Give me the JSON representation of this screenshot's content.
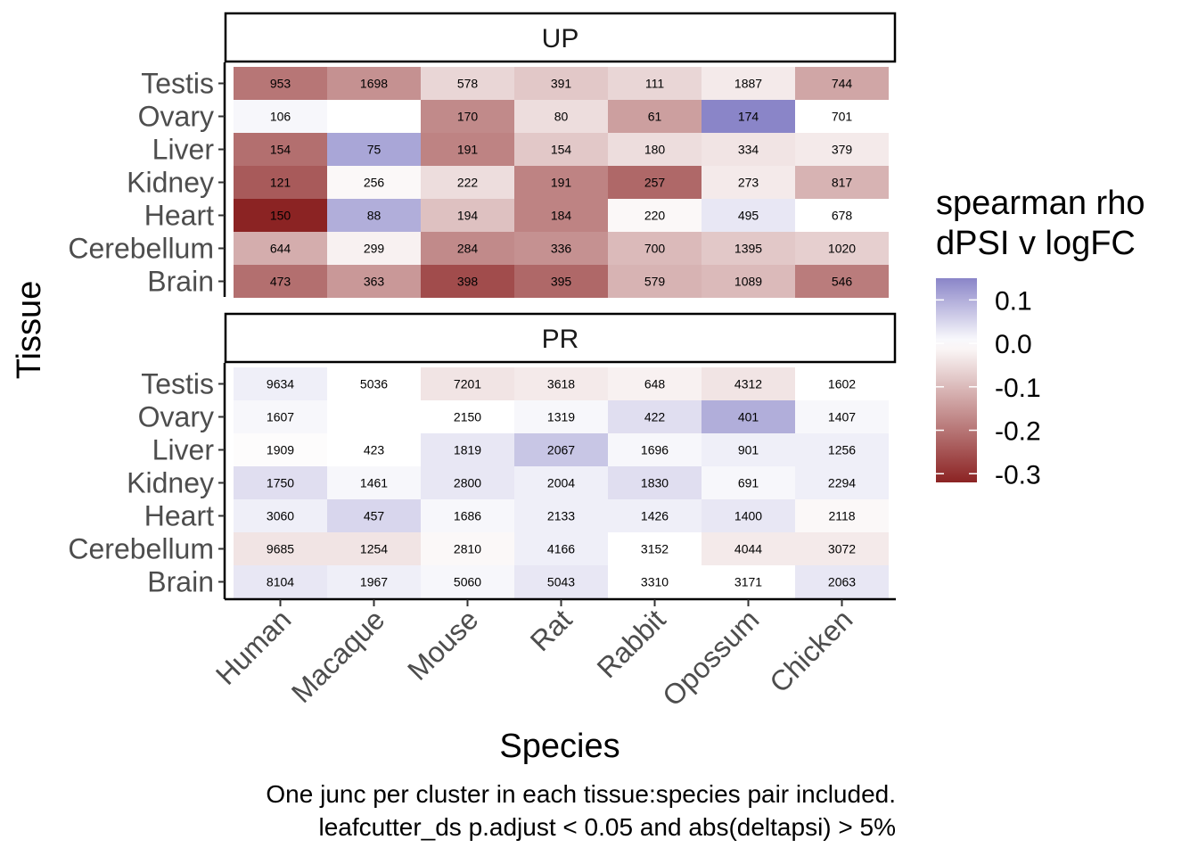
{
  "chart_data": {
    "type": "heatmap",
    "xlabel": "Species",
    "ylabel": "Tissue",
    "x_categories": [
      "Human",
      "Macaque",
      "Mouse",
      "Rat",
      "Rabbit",
      "Opossum",
      "Chicken"
    ],
    "y_categories": [
      "Testis",
      "Ovary",
      "Liver",
      "Kidney",
      "Heart",
      "Cerebellum",
      "Brain"
    ],
    "legend": {
      "title_line1": "spearman rho",
      "title_line2": "dPSI v logFC",
      "ticks": [
        "0.1",
        "0.0",
        "-0.1",
        "-0.2",
        "-0.3"
      ],
      "tick_values": [
        0.1,
        0.0,
        -0.1,
        -0.2,
        -0.3
      ],
      "range": [
        -0.32,
        0.15
      ],
      "low_color": "#8b2323",
      "mid_color": "#ffffff",
      "high_color": "#8a85c8",
      "placement": "right"
    },
    "caption_line1": "One junc per cluster in each tissue:species pair included.",
    "caption_line2": "leafcutter_ds p.adjust < 0.05 and abs(deltapsi) > 5%",
    "panels": [
      {
        "label": "UP",
        "counts": [
          [
            "953",
            "1698",
            "578",
            "391",
            "111",
            "1887",
            "744"
          ],
          [
            "106",
            "",
            "170",
            "80",
            "61",
            "174",
            "701"
          ],
          [
            "154",
            "75",
            "191",
            "154",
            "180",
            "334",
            "379"
          ],
          [
            "121",
            "256",
            "222",
            "191",
            "257",
            "273",
            "817"
          ],
          [
            "150",
            "88",
            "194",
            "184",
            "220",
            "495",
            "678"
          ],
          [
            "644",
            "299",
            "284",
            "336",
            "700",
            "1395",
            "1020"
          ],
          [
            "473",
            "363",
            "398",
            "395",
            "579",
            "1089",
            "546"
          ]
        ],
        "rho": [
          [
            -0.2,
            -0.16,
            -0.06,
            -0.08,
            -0.06,
            -0.03,
            -0.13
          ],
          [
            0.01,
            null,
            -0.17,
            -0.05,
            -0.14,
            0.15,
            0.0
          ],
          [
            -0.21,
            0.11,
            -0.18,
            -0.08,
            -0.05,
            -0.04,
            -0.03
          ],
          [
            -0.24,
            -0.01,
            -0.05,
            -0.18,
            -0.22,
            -0.03,
            -0.11
          ],
          [
            -0.32,
            0.1,
            -0.09,
            -0.18,
            -0.01,
            0.03,
            0.0
          ],
          [
            -0.12,
            -0.02,
            -0.17,
            -0.16,
            -0.1,
            -0.08,
            -0.07
          ],
          [
            -0.21,
            -0.15,
            -0.26,
            -0.22,
            -0.11,
            -0.1,
            -0.19
          ]
        ]
      },
      {
        "label": "PR",
        "counts": [
          [
            "9634",
            "5036",
            "7201",
            "3618",
            "648",
            "4312",
            "1602"
          ],
          [
            "1607",
            "",
            "2150",
            "1319",
            "422",
            "401",
            "1407"
          ],
          [
            "1909",
            "423",
            "1819",
            "2067",
            "1696",
            "901",
            "1256"
          ],
          [
            "1750",
            "1461",
            "2800",
            "2004",
            "1830",
            "691",
            "2294"
          ],
          [
            "3060",
            "457",
            "1686",
            "2133",
            "1426",
            "1400",
            "2118"
          ],
          [
            "9685",
            "1254",
            "2810",
            "4166",
            "3152",
            "4044",
            "3072"
          ],
          [
            "8104",
            "1967",
            "5060",
            "5043",
            "3310",
            "3171",
            "2063"
          ]
        ],
        "rho": [
          [
            0.02,
            0.0,
            -0.04,
            -0.03,
            -0.02,
            -0.04,
            0.0
          ],
          [
            0.01,
            null,
            0.0,
            0.01,
            0.04,
            0.1,
            0.01
          ],
          [
            -0.005,
            0.0,
            0.03,
            0.07,
            0.01,
            0.02,
            0.02
          ],
          [
            0.04,
            0.01,
            0.03,
            0.02,
            0.04,
            0.01,
            0.02
          ],
          [
            0.02,
            0.05,
            0.01,
            0.02,
            0.02,
            0.03,
            -0.01
          ],
          [
            -0.04,
            -0.04,
            -0.01,
            0.02,
            0.0,
            -0.03,
            -0.03
          ],
          [
            0.03,
            0.02,
            0.01,
            0.03,
            0.0,
            0.0,
            0.03
          ]
        ]
      }
    ]
  }
}
